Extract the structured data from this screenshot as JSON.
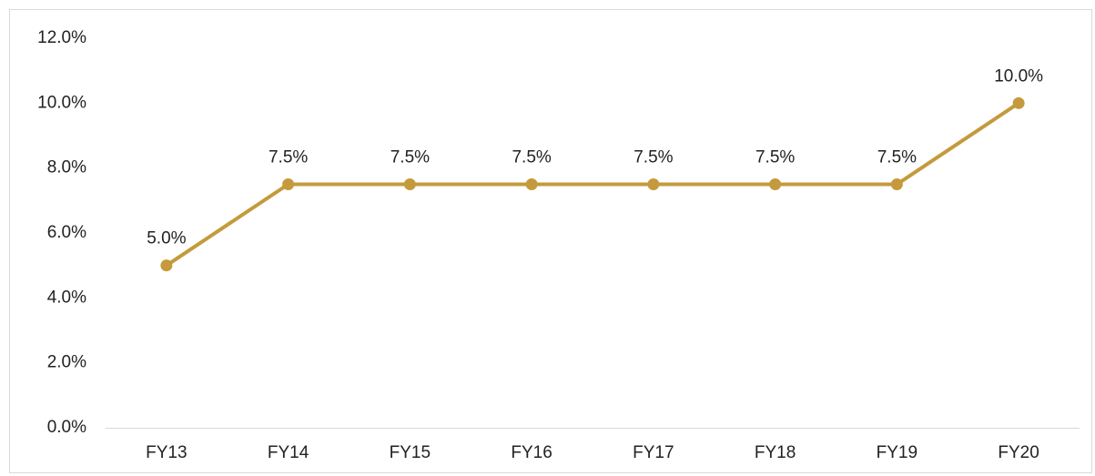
{
  "chart_data": {
    "type": "line",
    "categories": [
      "FY13",
      "FY14",
      "FY15",
      "FY16",
      "FY17",
      "FY18",
      "FY19",
      "FY20"
    ],
    "series": [
      {
        "color": "#c49a3c",
        "values": [
          5.0,
          7.5,
          7.5,
          7.5,
          7.5,
          7.5,
          7.5,
          10.0
        ],
        "value_labels": [
          "5.0%",
          "7.5%",
          "7.5%",
          "7.5%",
          "7.5%",
          "7.5%",
          "7.5%",
          "10.0%"
        ]
      }
    ],
    "ylim": [
      0,
      12
    ],
    "yticks": [
      {
        "value": 0,
        "label": "0.0%"
      },
      {
        "value": 2,
        "label": "2.0%"
      },
      {
        "value": 4,
        "label": "4.0%"
      },
      {
        "value": 6,
        "label": "6.0%"
      },
      {
        "value": 8,
        "label": "8.0%"
      },
      {
        "value": 10,
        "label": "10.0%"
      },
      {
        "value": 12,
        "label": "12.0%"
      }
    ],
    "grid": false
  }
}
